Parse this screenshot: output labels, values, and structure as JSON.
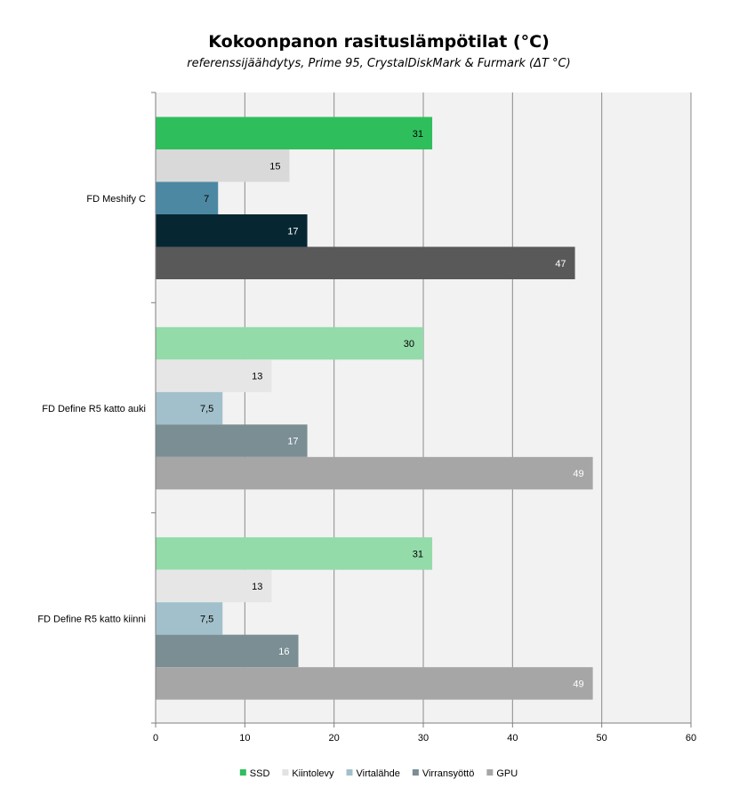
{
  "chart_data": {
    "type": "bar",
    "orientation": "horizontal",
    "title": "Kokoonpanon rasituslämpötilat (°C)",
    "subtitle": "referenssijäähdytys, Prime 95, CrystalDiskMark & Furmark (ΔT °C)",
    "categories": [
      "FD Meshify C",
      "FD Define R5 katto auki",
      "FD Define R5 katto kiinni"
    ],
    "series": [
      {
        "name": "SSD",
        "legend_color": "#2ebf5c",
        "colors": [
          "#2ebf5c",
          "#93dba9",
          "#93dba9"
        ],
        "values": [
          31,
          30,
          31
        ],
        "labels": [
          "31",
          "30",
          "31"
        ],
        "label_color": "#000000"
      },
      {
        "name": "Kiintolevy",
        "legend_color": "#e2e2e2",
        "colors": [
          "#d9d9d9",
          "#e6e6e6",
          "#e6e6e6"
        ],
        "values": [
          15,
          13,
          13
        ],
        "labels": [
          "15",
          "13",
          "13"
        ],
        "label_color": "#000000"
      },
      {
        "name": "Virtalähde",
        "legend_color": "#a2c0cb",
        "colors": [
          "#4d88a3",
          "#a2c0cb",
          "#a2c0cb"
        ],
        "values": [
          7,
          7.5,
          7.5
        ],
        "labels": [
          "7",
          "7,5",
          "7,5"
        ],
        "label_color": "#000000"
      },
      {
        "name": "Virransyöttö",
        "legend_color": "#7a8e94",
        "colors": [
          "#062732",
          "#7a8e94",
          "#7a8e94"
        ],
        "values": [
          17,
          17,
          16
        ],
        "labels": [
          "17",
          "17",
          "16"
        ],
        "label_color": "#ffffff"
      },
      {
        "name": "GPU",
        "legend_color": "#a6a6a6",
        "colors": [
          "#595959",
          "#a6a6a6",
          "#a6a6a6"
        ],
        "values": [
          47,
          49,
          49
        ],
        "labels": [
          "47",
          "49",
          "49"
        ],
        "label_color": "#ffffff"
      }
    ],
    "xlim": [
      0,
      60
    ],
    "xticks": [
      0,
      10,
      20,
      30,
      40,
      50,
      60
    ],
    "grid": true,
    "plot_background": "#f2f2f2",
    "legend_position": "bottom"
  }
}
